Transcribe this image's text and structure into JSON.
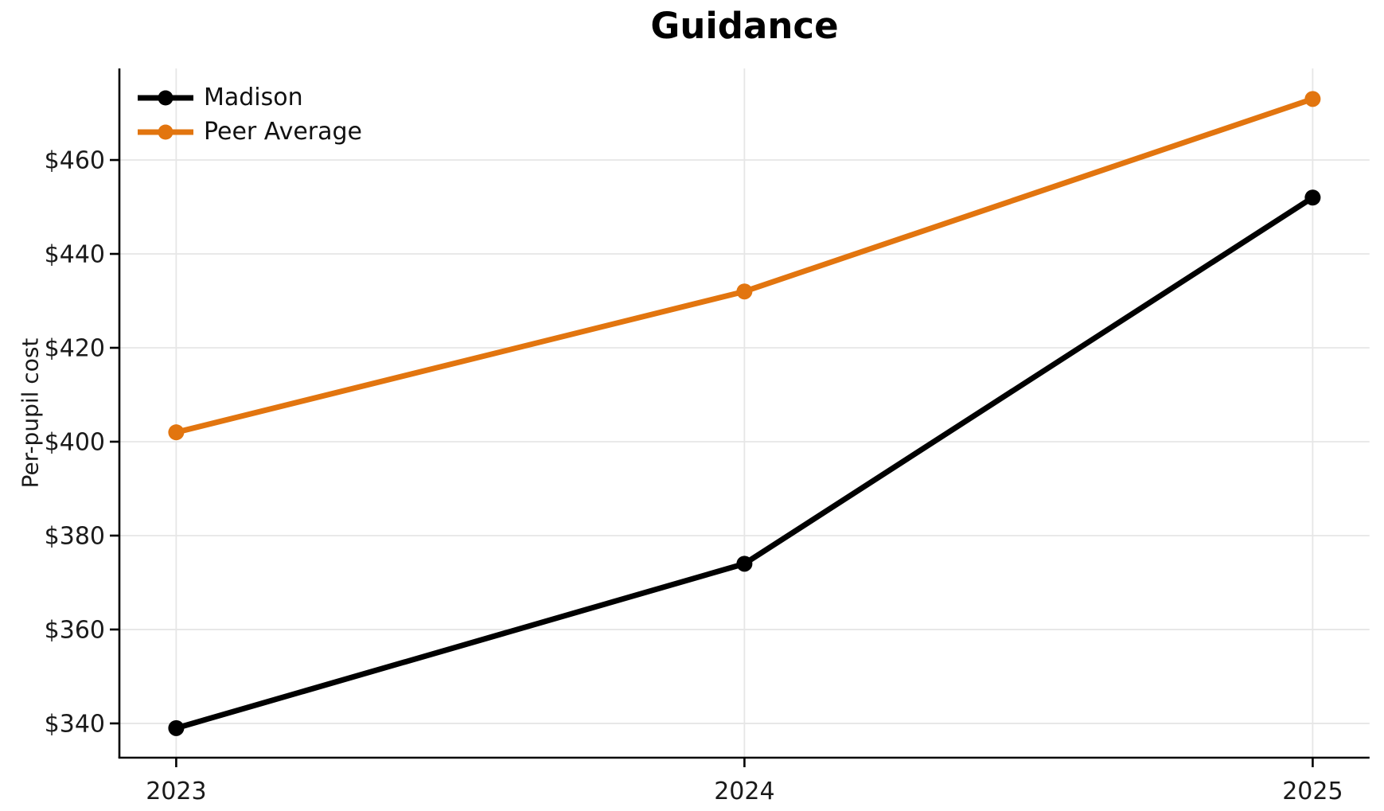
{
  "chart_data": {
    "type": "line",
    "title": "Guidance",
    "xlabel": "",
    "ylabel": "Per-pupil cost",
    "x": [
      2023,
      2024,
      2025
    ],
    "series": [
      {
        "name": "Madison",
        "color": "#000000",
        "values": [
          339,
          374,
          452
        ]
      },
      {
        "name": "Peer Average",
        "color": "#E2750F",
        "values": [
          402,
          432,
          473
        ]
      }
    ],
    "xticks": {
      "values": [
        2023,
        2024,
        2025
      ],
      "labels": [
        "2023",
        "2024",
        "2025"
      ]
    },
    "yticks": {
      "values": [
        340,
        360,
        380,
        400,
        420,
        440,
        460
      ],
      "labels": [
        "$340",
        "$360",
        "$380",
        "$400",
        "$420",
        "$440",
        "$460"
      ]
    },
    "xlim": [
      2022.9,
      2025.1
    ],
    "ylim": [
      332.7,
      479.5
    ],
    "grid": true,
    "legend": {
      "position": "upper left",
      "entries": [
        "Madison",
        "Peer Average"
      ]
    },
    "colors": {
      "background": "#ffffff",
      "grid": "#e6e6e6",
      "axis": "#000000",
      "tick_text": "#1a1a1a",
      "title_text": "#000000"
    }
  }
}
